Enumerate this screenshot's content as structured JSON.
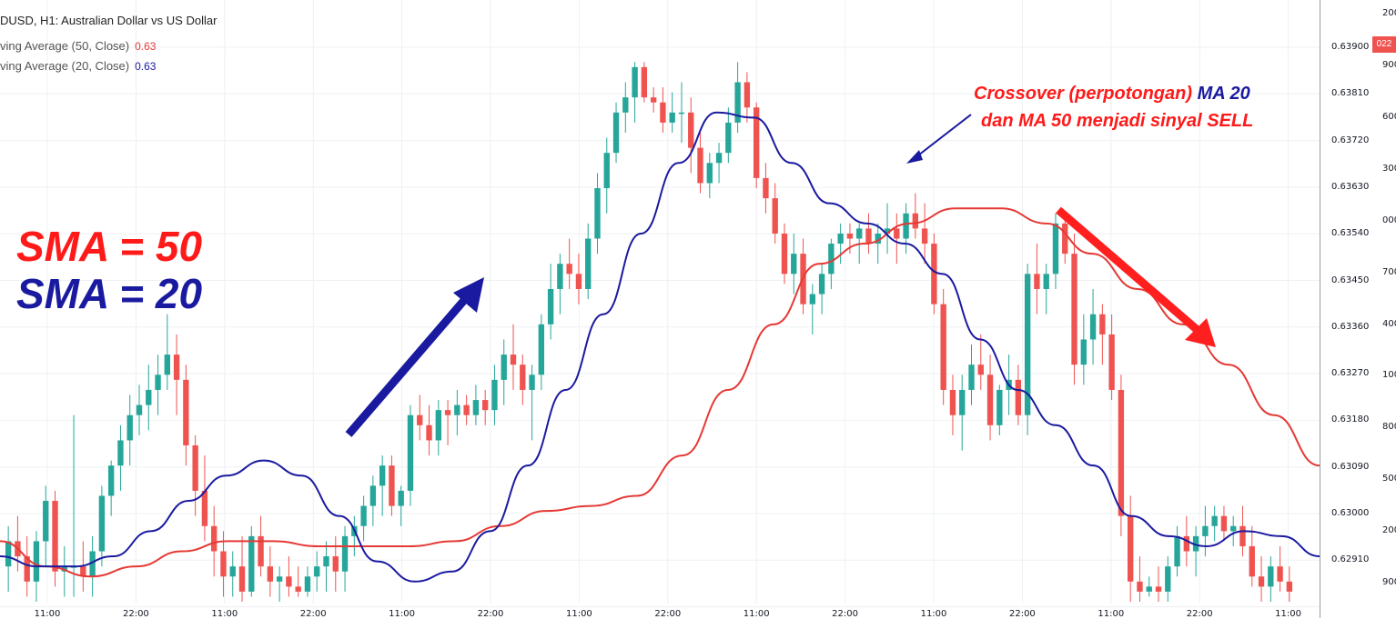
{
  "header": {
    "symbol_title": "DUSD, H1: Australian Dollar vs US Dollar",
    "legend": [
      {
        "label": "ving Average (50, Close)",
        "value": "0.63",
        "color": "#e53935"
      },
      {
        "label": "ving Average (20, Close)",
        "value": "0.63",
        "color": "#1a1aa0"
      }
    ]
  },
  "overlay": {
    "sma50_text": "SMA = 50",
    "sma20_text": "SMA = 20",
    "crossover_line1_red": "Crossover (perpotongan) ",
    "crossover_line1_blue": "MA 20",
    "crossover_line2": "dan MA 50 menjadi sinyal SELL"
  },
  "price_axis": {
    "top_label": "200",
    "badge": "022",
    "ticks": [
      "0.63900",
      "0.63810",
      "0.63720",
      "0.63630",
      "0.63540",
      "0.63450",
      "0.63360",
      "0.63270",
      "0.63180",
      "0.63090",
      "0.63000",
      "0.62910"
    ],
    "right_cut_labels": [
      "900",
      "600",
      "300",
      "000",
      "700",
      "400",
      "100",
      "800",
      "500",
      "200",
      "900"
    ]
  },
  "time_axis": {
    "labels": [
      "11:00",
      "22:00",
      "11:00",
      "22:00",
      "11:00",
      "22:00",
      "11:00",
      "22:00",
      "11:00",
      "22:00",
      "11:00",
      "22:00",
      "11:00",
      "22:00",
      "11:00"
    ]
  },
  "colors": {
    "up": "#26a69a",
    "down": "#ef5350",
    "ma50": "#e53935",
    "ma20": "#1a1aa0",
    "grid": "#eef0f3"
  },
  "chart_data": {
    "type": "candlestick",
    "title": "DUSD, H1: Australian Dollar vs US Dollar",
    "ylim": [
      0.6283,
      0.6396
    ],
    "ohlc": [
      [
        0.629,
        0.6298,
        0.6285,
        0.6295
      ],
      [
        0.6295,
        0.63,
        0.6289,
        0.6292
      ],
      [
        0.6292,
        0.6296,
        0.6284,
        0.6287
      ],
      [
        0.6287,
        0.6297,
        0.6283,
        0.6295
      ],
      [
        0.6295,
        0.6306,
        0.629,
        0.6303
      ],
      [
        0.6303,
        0.6305,
        0.6286,
        0.6289
      ],
      [
        0.6289,
        0.6294,
        0.6284,
        0.629
      ],
      [
        0.629,
        0.632,
        0.6284,
        0.629
      ],
      [
        0.629,
        0.6295,
        0.6285,
        0.6288
      ],
      [
        0.6288,
        0.6296,
        0.6284,
        0.6293
      ],
      [
        0.6293,
        0.6306,
        0.629,
        0.6304
      ],
      [
        0.6304,
        0.6311,
        0.63,
        0.631
      ],
      [
        0.631,
        0.6318,
        0.6305,
        0.6315
      ],
      [
        0.6315,
        0.6324,
        0.631,
        0.632
      ],
      [
        0.632,
        0.6326,
        0.6316,
        0.6322
      ],
      [
        0.6322,
        0.633,
        0.6317,
        0.6325
      ],
      [
        0.6325,
        0.6332,
        0.632,
        0.6328
      ],
      [
        0.6328,
        0.634,
        0.6325,
        0.6332
      ],
      [
        0.6332,
        0.6336,
        0.632,
        0.6327
      ],
      [
        0.6327,
        0.633,
        0.631,
        0.6314
      ],
      [
        0.6314,
        0.6316,
        0.63,
        0.6305
      ],
      [
        0.6305,
        0.6312,
        0.6295,
        0.6298
      ],
      [
        0.6298,
        0.6302,
        0.6288,
        0.6293
      ],
      [
        0.6293,
        0.6297,
        0.6284,
        0.6288
      ],
      [
        0.6288,
        0.6293,
        0.6284,
        0.629
      ],
      [
        0.629,
        0.6296,
        0.6283,
        0.6285
      ],
      [
        0.6285,
        0.6298,
        0.6284,
        0.6296
      ],
      [
        0.6296,
        0.63,
        0.6288,
        0.629
      ],
      [
        0.629,
        0.6294,
        0.6284,
        0.6287
      ],
      [
        0.6287,
        0.629,
        0.6283,
        0.6288
      ],
      [
        0.6288,
        0.6292,
        0.6284,
        0.6286
      ],
      [
        0.6286,
        0.629,
        0.6284,
        0.6285
      ],
      [
        0.6285,
        0.629,
        0.6284,
        0.6288
      ],
      [
        0.6288,
        0.6293,
        0.6285,
        0.629
      ],
      [
        0.629,
        0.6295,
        0.6285,
        0.6292
      ],
      [
        0.6292,
        0.6296,
        0.6285,
        0.6289
      ],
      [
        0.6289,
        0.6298,
        0.6285,
        0.6296
      ],
      [
        0.6296,
        0.63,
        0.6292,
        0.6298
      ],
      [
        0.6298,
        0.6304,
        0.6295,
        0.6302
      ],
      [
        0.6302,
        0.6308,
        0.6298,
        0.6306
      ],
      [
        0.6306,
        0.6312,
        0.63,
        0.631
      ],
      [
        0.631,
        0.6312,
        0.63,
        0.6302
      ],
      [
        0.6302,
        0.6306,
        0.6298,
        0.6305
      ],
      [
        0.6305,
        0.6322,
        0.6302,
        0.632
      ],
      [
        0.632,
        0.6324,
        0.6315,
        0.6318
      ],
      [
        0.6318,
        0.6322,
        0.6312,
        0.6315
      ],
      [
        0.6315,
        0.6323,
        0.6312,
        0.6321
      ],
      [
        0.6321,
        0.6323,
        0.6314,
        0.632
      ],
      [
        0.632,
        0.6325,
        0.6316,
        0.6322
      ],
      [
        0.6322,
        0.6324,
        0.6318,
        0.632
      ],
      [
        0.632,
        0.6326,
        0.6318,
        0.6323
      ],
      [
        0.6323,
        0.6325,
        0.6318,
        0.6321
      ],
      [
        0.6321,
        0.633,
        0.6318,
        0.6327
      ],
      [
        0.6327,
        0.6335,
        0.6322,
        0.6332
      ],
      [
        0.6332,
        0.6338,
        0.6325,
        0.633
      ],
      [
        0.633,
        0.6332,
        0.6322,
        0.6325
      ],
      [
        0.6325,
        0.633,
        0.6315,
        0.6328
      ],
      [
        0.6328,
        0.634,
        0.6325,
        0.6338
      ],
      [
        0.6338,
        0.635,
        0.6335,
        0.6345
      ],
      [
        0.6345,
        0.6352,
        0.634,
        0.635
      ],
      [
        0.635,
        0.6355,
        0.6345,
        0.6348
      ],
      [
        0.6348,
        0.6352,
        0.6342,
        0.6345
      ],
      [
        0.6345,
        0.6358,
        0.6343,
        0.6355
      ],
      [
        0.6355,
        0.6368,
        0.6352,
        0.6365
      ],
      [
        0.6365,
        0.6375,
        0.636,
        0.6372
      ],
      [
        0.6372,
        0.6382,
        0.637,
        0.638
      ],
      [
        0.638,
        0.6386,
        0.6376,
        0.6383
      ],
      [
        0.6383,
        0.639,
        0.6378,
        0.6389
      ],
      [
        0.6389,
        0.639,
        0.6382,
        0.6383
      ],
      [
        0.6383,
        0.6385,
        0.638,
        0.6382
      ],
      [
        0.6382,
        0.6385,
        0.6376,
        0.6378
      ],
      [
        0.6378,
        0.6384,
        0.6376,
        0.638
      ],
      [
        0.638,
        0.6386,
        0.6374,
        0.638
      ],
      [
        0.638,
        0.6383,
        0.6368,
        0.6373
      ],
      [
        0.6373,
        0.6376,
        0.6364,
        0.6366
      ],
      [
        0.6366,
        0.6372,
        0.6363,
        0.637
      ],
      [
        0.637,
        0.6374,
        0.6366,
        0.6372
      ],
      [
        0.6372,
        0.6381,
        0.637,
        0.6378
      ],
      [
        0.6378,
        0.639,
        0.6376,
        0.6386
      ],
      [
        0.6386,
        0.6388,
        0.6378,
        0.6381
      ],
      [
        0.6381,
        0.6382,
        0.6365,
        0.6367
      ],
      [
        0.6367,
        0.637,
        0.636,
        0.6363
      ],
      [
        0.6363,
        0.6366,
        0.6354,
        0.6356
      ],
      [
        0.6356,
        0.6358,
        0.6346,
        0.6348
      ],
      [
        0.6348,
        0.6356,
        0.6344,
        0.6352
      ],
      [
        0.6352,
        0.6355,
        0.634,
        0.6342
      ],
      [
        0.6342,
        0.6346,
        0.6336,
        0.6344
      ],
      [
        0.6344,
        0.635,
        0.634,
        0.6348
      ],
      [
        0.6348,
        0.6355,
        0.6345,
        0.6354
      ],
      [
        0.6354,
        0.6358,
        0.635,
        0.6356
      ],
      [
        0.6356,
        0.6358,
        0.6352,
        0.6355
      ],
      [
        0.6355,
        0.6358,
        0.635,
        0.6357
      ],
      [
        0.6357,
        0.636,
        0.6352,
        0.6354
      ],
      [
        0.6354,
        0.6358,
        0.635,
        0.6356
      ],
      [
        0.6356,
        0.6362,
        0.6352,
        0.6357
      ],
      [
        0.6357,
        0.636,
        0.635,
        0.6355
      ],
      [
        0.6355,
        0.6362,
        0.6352,
        0.636
      ],
      [
        0.636,
        0.6364,
        0.6355,
        0.6357
      ],
      [
        0.6357,
        0.6362,
        0.635,
        0.6354
      ],
      [
        0.6354,
        0.6356,
        0.634,
        0.6342
      ],
      [
        0.6342,
        0.6345,
        0.6322,
        0.6325
      ],
      [
        0.6325,
        0.6328,
        0.6316,
        0.632
      ],
      [
        0.632,
        0.6328,
        0.6313,
        0.6325
      ],
      [
        0.6325,
        0.6334,
        0.6322,
        0.633
      ],
      [
        0.633,
        0.6336,
        0.6325,
        0.6328
      ],
      [
        0.6328,
        0.6332,
        0.6315,
        0.6318
      ],
      [
        0.6318,
        0.6326,
        0.6316,
        0.6325
      ],
      [
        0.6325,
        0.6332,
        0.632,
        0.6327
      ],
      [
        0.6327,
        0.633,
        0.6318,
        0.632
      ],
      [
        0.632,
        0.635,
        0.6316,
        0.6348
      ],
      [
        0.6348,
        0.6354,
        0.634,
        0.6345
      ],
      [
        0.6345,
        0.635,
        0.634,
        0.6348
      ],
      [
        0.6348,
        0.636,
        0.6345,
        0.6358
      ],
      [
        0.6358,
        0.636,
        0.635,
        0.6352
      ],
      [
        0.6352,
        0.6356,
        0.6326,
        0.633
      ],
      [
        0.633,
        0.634,
        0.6326,
        0.6335
      ],
      [
        0.6335,
        0.6345,
        0.633,
        0.634
      ],
      [
        0.634,
        0.6342,
        0.633,
        0.6336
      ],
      [
        0.6336,
        0.634,
        0.6323,
        0.6325
      ],
      [
        0.6325,
        0.6328,
        0.6296,
        0.63
      ],
      [
        0.63,
        0.6304,
        0.6283,
        0.6287
      ],
      [
        0.6287,
        0.6292,
        0.6283,
        0.6285
      ],
      [
        0.6285,
        0.6288,
        0.6284,
        0.6286
      ],
      [
        0.6286,
        0.629,
        0.6283,
        0.6285
      ],
      [
        0.6285,
        0.6292,
        0.6283,
        0.629
      ],
      [
        0.629,
        0.6298,
        0.6288,
        0.6296
      ],
      [
        0.6296,
        0.63,
        0.629,
        0.6293
      ],
      [
        0.6293,
        0.6298,
        0.6288,
        0.6296
      ],
      [
        0.6296,
        0.6302,
        0.6292,
        0.6298
      ],
      [
        0.6298,
        0.6302,
        0.6295,
        0.63
      ],
      [
        0.63,
        0.6302,
        0.6295,
        0.6297
      ],
      [
        0.6297,
        0.63,
        0.6294,
        0.6298
      ],
      [
        0.6298,
        0.6302,
        0.6292,
        0.6294
      ],
      [
        0.6294,
        0.6298,
        0.6286,
        0.6288
      ],
      [
        0.6288,
        0.6292,
        0.6283,
        0.6286
      ],
      [
        0.6286,
        0.6292,
        0.6283,
        0.629
      ],
      [
        0.629,
        0.6294,
        0.6285,
        0.6287
      ],
      [
        0.6287,
        0.629,
        0.6283,
        0.6285
      ]
    ],
    "ma20": [
      0.6292,
      0.629,
      0.629,
      0.6292,
      0.6297,
      0.6303,
      0.6308,
      0.6311,
      0.6308,
      0.63,
      0.6291,
      0.6287,
      0.6289,
      0.6297,
      0.631,
      0.6325,
      0.634,
      0.6356,
      0.637,
      0.638,
      0.6379,
      0.637,
      0.6362,
      0.6358,
      0.6354,
      0.6348,
      0.6335,
      0.6325,
      0.6318,
      0.631,
      0.63,
      0.6296,
      0.6294,
      0.6297,
      0.6296,
      0.6292
    ],
    "ma50": [
      0.6295,
      0.629,
      0.6288,
      0.629,
      0.6293,
      0.6295,
      0.6295,
      0.6294,
      0.6294,
      0.6294,
      0.6295,
      0.6298,
      0.6301,
      0.6302,
      0.6304,
      0.6312,
      0.6325,
      0.6338,
      0.635,
      0.6354,
      0.6358,
      0.6361,
      0.6361,
      0.6358,
      0.6352,
      0.6345,
      0.6338,
      0.633,
      0.632,
      0.631
    ]
  }
}
